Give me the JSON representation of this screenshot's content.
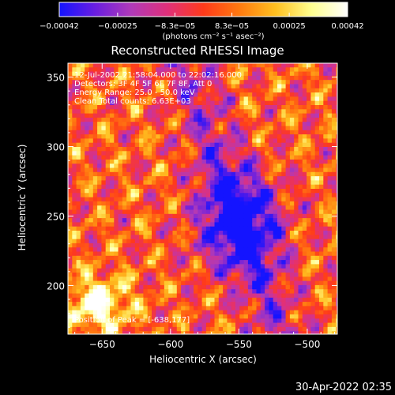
{
  "chart_data": {
    "type": "heatmap",
    "title": "Reconstructed RHESSI Image",
    "xlabel": "Heliocentric X (arcsec)",
    "ylabel": "Heliocentric Y (arcsec)",
    "xlim": [
      -675,
      -478
    ],
    "ylim": [
      165,
      360
    ],
    "x_ticks": [
      -650,
      -600,
      -550,
      -500
    ],
    "y_ticks": [
      200,
      250,
      300,
      350
    ],
    "x_tick_labels": [
      "−650",
      "−600",
      "−550",
      "−500"
    ],
    "y_tick_labels": [
      "200",
      "250",
      "300",
      "350"
    ],
    "colorbar": {
      "range": [
        -0.00042,
        0.00042
      ],
      "tick_values": [
        -0.00042,
        -0.00025,
        -8.3e-05,
        8.3e-05,
        0.00025,
        0.00042
      ],
      "tick_labels": [
        "−0.00042",
        "−0.00025",
        "−8.3e−05",
        "8.3e−05",
        "0.00025",
        "0.00042"
      ],
      "unit_label": "(photons cm⁻² s⁻¹ asec⁻²)",
      "colors": [
        "#1414ff",
        "#6a1ee0",
        "#b03ab8",
        "#e0307a",
        "#ff3a1a",
        "#ff7a10",
        "#ffc020",
        "#ffff90",
        "#ffffff"
      ]
    },
    "annotations": {
      "line1": "12-Jul-2002 21:58:04.000 to 22:02:16.000",
      "line2": "Detectors: 3F 4F 5F 6F 7F 8F, Att 0",
      "line3": "Energy Range: 25.0 - 50.0 keV",
      "line4": "Clean     Total counts: 6.63E+03",
      "peak": "Position of Peak = [-638,177]"
    },
    "peak": {
      "x": -638,
      "y": 177
    }
  },
  "footer": {
    "timestamp": "30-Apr-2022 02:35"
  }
}
